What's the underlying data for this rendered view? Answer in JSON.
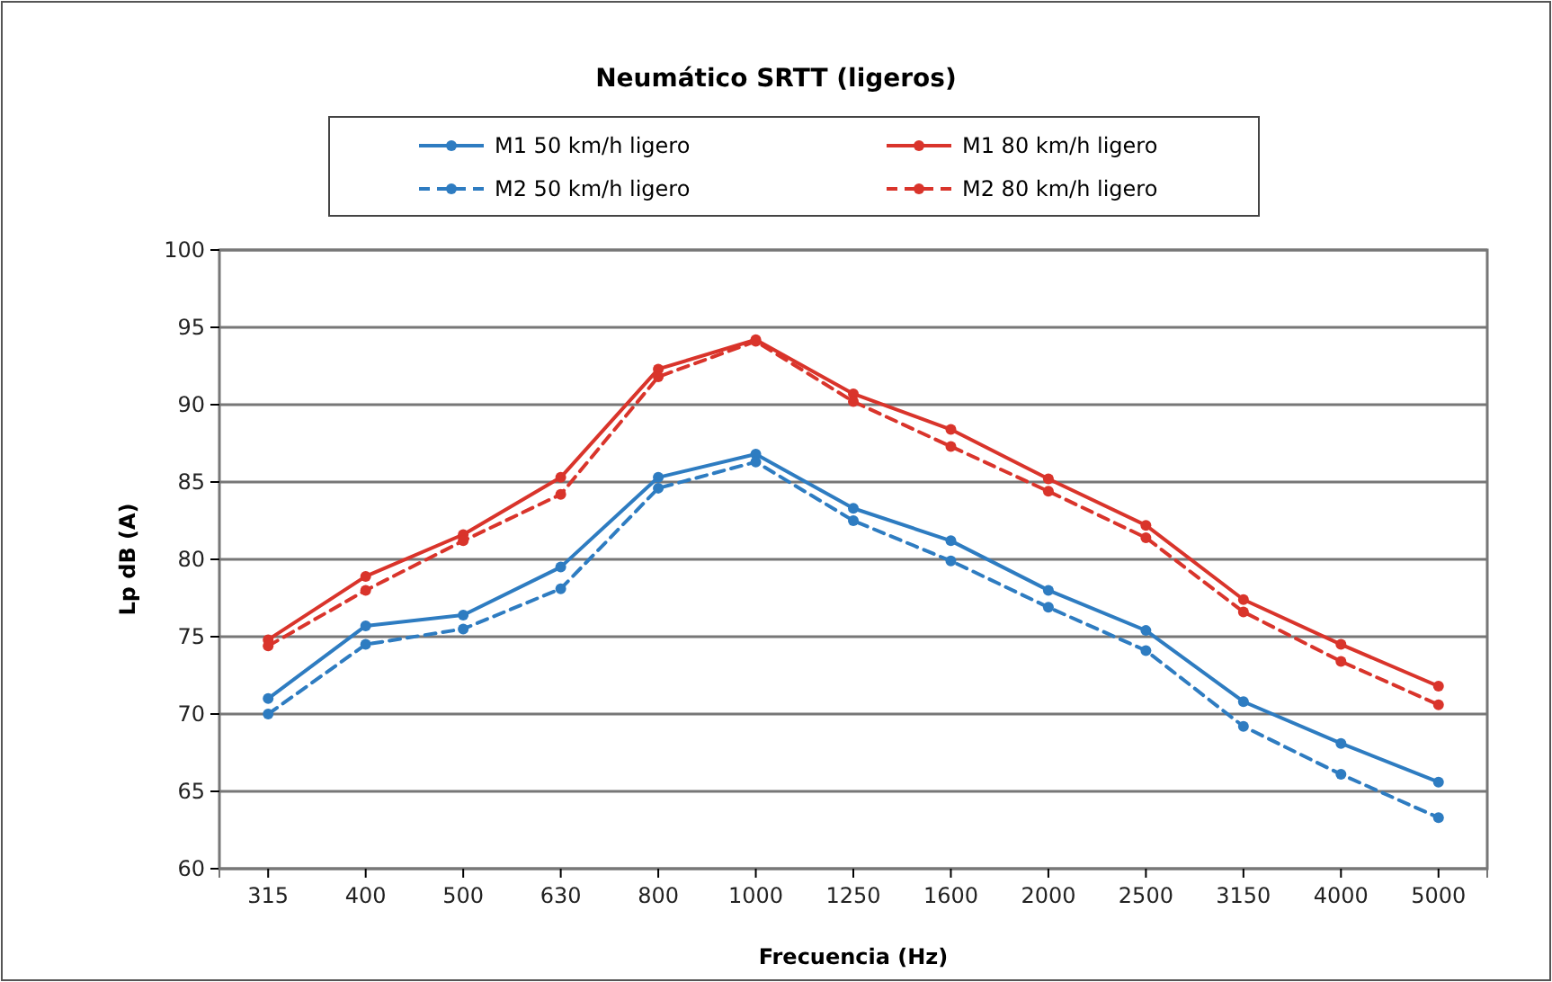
{
  "chart_data": {
    "type": "line",
    "title": "Neumático SRTT (ligeros)",
    "xlabel": "Frecuencia (Hz)",
    "ylabel": "Lp dB (A)",
    "categories": [
      "315",
      "400",
      "500",
      "630",
      "800",
      "1000",
      "1250",
      "1600",
      "2000",
      "2500",
      "3150",
      "4000",
      "5000"
    ],
    "series": [
      {
        "name": "M1 50 km/h ligero",
        "color": "#2e7cc1",
        "line_style": "solid",
        "values": [
          71.0,
          75.7,
          76.4,
          79.5,
          85.3,
          86.8,
          83.3,
          81.2,
          78.0,
          75.4,
          70.8,
          68.1,
          65.6
        ]
      },
      {
        "name": "M1 80 km/h ligero",
        "color": "#d9342b",
        "line_style": "solid",
        "values": [
          74.8,
          78.9,
          81.6,
          85.3,
          92.3,
          94.2,
          90.7,
          88.4,
          85.2,
          82.2,
          77.4,
          74.5,
          71.8
        ]
      },
      {
        "name": "M2 50 km/h ligero",
        "color": "#2e7cc1",
        "line_style": "dashed",
        "values": [
          70.0,
          74.5,
          75.5,
          78.1,
          84.6,
          86.3,
          82.5,
          79.9,
          76.9,
          74.1,
          69.2,
          66.1,
          63.3
        ]
      },
      {
        "name": "M2 80 km/h ligero",
        "color": "#d9342b",
        "line_style": "dashed",
        "values": [
          74.4,
          78.0,
          81.2,
          84.2,
          91.8,
          94.1,
          90.2,
          87.3,
          84.4,
          81.4,
          76.6,
          73.4,
          70.6
        ]
      }
    ],
    "ylim": [
      60,
      100
    ],
    "yticks": [
      60,
      65,
      70,
      75,
      80,
      85,
      90,
      95,
      100
    ],
    "grid": "y",
    "legend": "top",
    "marker": "circle"
  }
}
